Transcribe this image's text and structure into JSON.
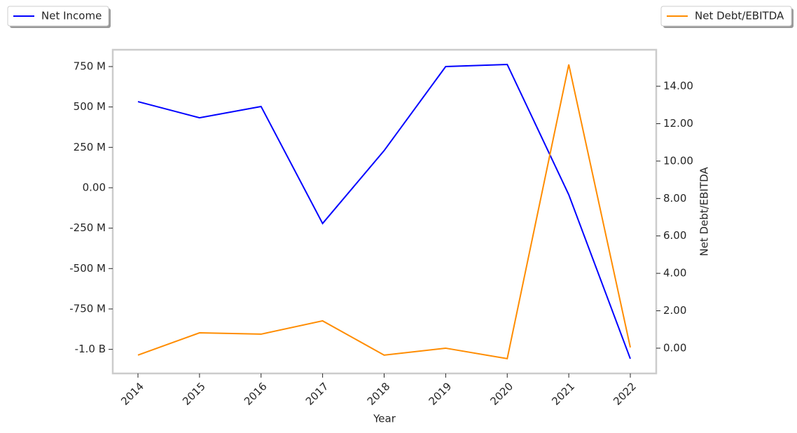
{
  "chart_data": {
    "type": "line",
    "x_label": "Year",
    "y2_label": "Net Debt/EBITDA",
    "categories": [
      "2014",
      "2015",
      "2016",
      "2017",
      "2018",
      "2019",
      "2020",
      "2021",
      "2022"
    ],
    "series": [
      {
        "name": "Net Income",
        "color": "#0000ff",
        "values": [
          533000000,
          433000000,
          503000000,
          -221000000,
          230000000,
          750000000,
          763000000,
          -43000000,
          -1058000000
        ]
      },
      {
        "name": "Net Debt/EBITDA",
        "color": "#ff8c00",
        "axis": "y2",
        "values": [
          -0.37,
          0.82,
          0.75,
          1.46,
          -0.37,
          0.0,
          -0.56,
          15.16,
          0.04
        ]
      }
    ],
    "ylim": [
      -1149000000,
      854000000
    ],
    "yticks": [
      {
        "value": 750000000,
        "label": "750 M"
      },
      {
        "value": 500000000,
        "label": "500 M"
      },
      {
        "value": 250000000,
        "label": "250 M"
      },
      {
        "value": 0,
        "label": "0.00"
      },
      {
        "value": -250000000,
        "label": "-250 M"
      },
      {
        "value": -500000000,
        "label": "-500 M"
      },
      {
        "value": -750000000,
        "label": "-750 M"
      },
      {
        "value": -1000000000,
        "label": "-1.0 B"
      }
    ],
    "y2lim": [
      -1.35,
      15.95
    ],
    "y2ticks": [
      {
        "value": 0,
        "label": "0.00"
      },
      {
        "value": 2,
        "label": "2.00"
      },
      {
        "value": 4,
        "label": "4.00"
      },
      {
        "value": 6,
        "label": "6.00"
      },
      {
        "value": 8,
        "label": "8.00"
      },
      {
        "value": 10,
        "label": "10.00"
      },
      {
        "value": 12,
        "label": "12.00"
      },
      {
        "value": 14,
        "label": "14.00"
      }
    ]
  }
}
